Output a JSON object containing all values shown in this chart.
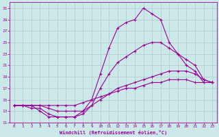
{
  "xlabel": "Windchill (Refroidissement éolien,°C)",
  "bg_color": "#cce8e8",
  "grid_color": "#aacccc",
  "line_color": "#990099",
  "xlim": [
    -0.5,
    23.5
  ],
  "ylim": [
    11,
    32
  ],
  "xticks": [
    0,
    1,
    2,
    3,
    4,
    5,
    6,
    7,
    8,
    9,
    10,
    11,
    12,
    13,
    14,
    15,
    16,
    17,
    18,
    19,
    20,
    21,
    22,
    23
  ],
  "yticks": [
    11,
    13,
    15,
    17,
    19,
    21,
    23,
    25,
    27,
    29,
    31
  ],
  "line1_x": [
    0,
    1,
    2,
    3,
    4,
    5,
    6,
    7,
    8,
    9,
    10,
    11,
    12,
    13,
    14,
    15,
    16,
    17,
    18,
    19,
    20,
    21,
    22,
    23
  ],
  "line1_y": [
    14,
    14,
    14,
    13,
    12,
    12,
    12,
    12,
    13,
    15,
    19.5,
    24,
    27.5,
    28.5,
    29,
    31,
    30,
    29,
    25,
    23,
    21,
    20,
    18,
    18
  ],
  "line2_x": [
    0,
    1,
    2,
    3,
    4,
    5,
    6,
    7,
    8,
    9,
    10,
    11,
    12,
    13,
    14,
    15,
    16,
    17,
    18,
    19,
    20,
    21,
    22,
    23
  ],
  "line2_y": [
    14,
    14,
    13.5,
    13.5,
    12.5,
    12,
    12,
    12,
    12.5,
    14,
    17,
    19.5,
    21.5,
    22.5,
    23.5,
    24.5,
    25,
    25,
    24,
    23,
    22,
    21,
    18.5,
    18
  ],
  "line3_x": [
    0,
    1,
    2,
    3,
    4,
    5,
    6,
    7,
    8,
    9,
    10,
    11,
    12,
    13,
    14,
    15,
    16,
    17,
    18,
    19,
    20,
    21,
    22,
    23
  ],
  "line3_y": [
    14,
    14,
    14,
    14,
    13.5,
    13,
    13,
    13,
    13,
    14,
    15,
    16,
    17,
    17.5,
    18,
    18.5,
    19,
    19.5,
    20,
    20,
    20,
    19.5,
    18.5,
    18
  ],
  "line4_x": [
    0,
    1,
    2,
    3,
    4,
    5,
    6,
    7,
    8,
    9,
    10,
    11,
    12,
    13,
    14,
    15,
    16,
    17,
    18,
    19,
    20,
    21,
    22,
    23
  ],
  "line4_y": [
    14,
    14,
    14,
    14,
    14,
    14,
    14,
    14,
    14.5,
    15,
    15.5,
    16,
    16.5,
    17,
    17,
    17.5,
    18,
    18,
    18.5,
    18.5,
    18.5,
    18,
    18,
    18
  ]
}
